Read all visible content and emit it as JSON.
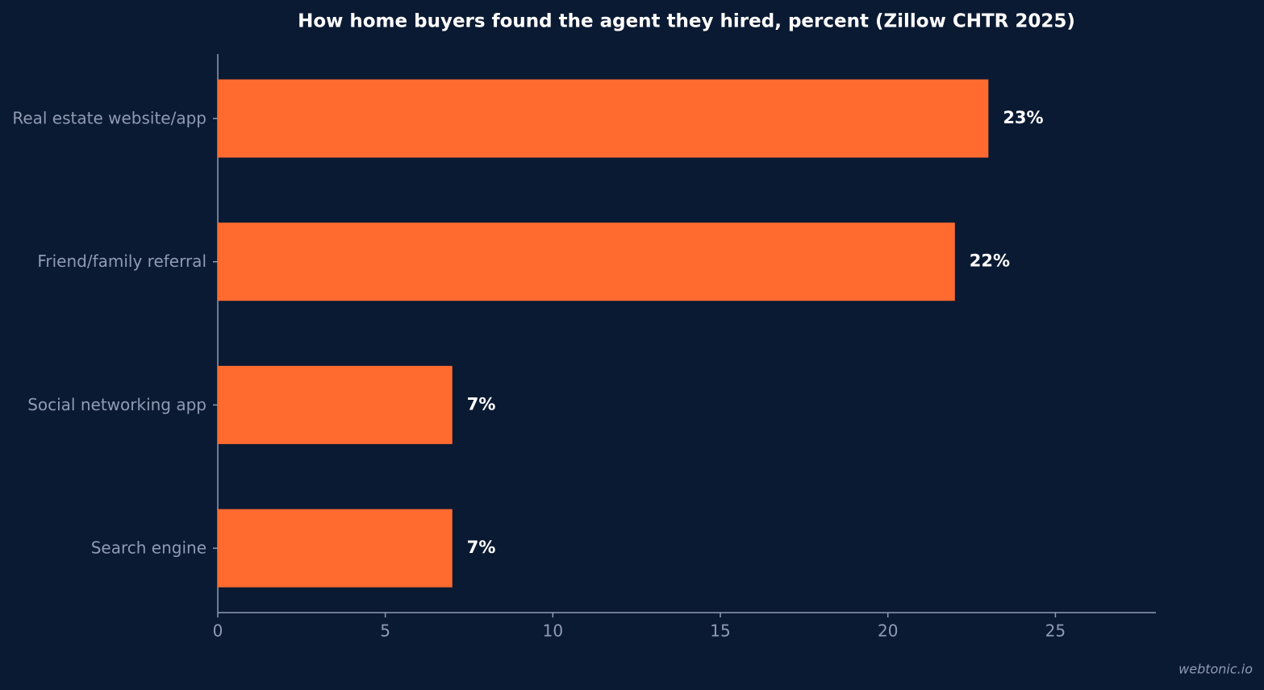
{
  "chart_data": {
    "type": "bar",
    "orientation": "horizontal",
    "title": "How home buyers found the agent they hired, percent (Zillow CHTR 2025)",
    "categories": [
      "Real estate website/app",
      "Friend/family referral",
      "Social networking app",
      "Search engine"
    ],
    "values": [
      23,
      22,
      7,
      7
    ],
    "value_labels": [
      "23%",
      "22%",
      "7%",
      "7%"
    ],
    "color": "#ff6b2f",
    "xlim": [
      0,
      28
    ],
    "xticks": [
      0,
      5,
      10,
      15,
      20,
      25
    ],
    "grid": false,
    "watermark": "webtonic.io"
  }
}
